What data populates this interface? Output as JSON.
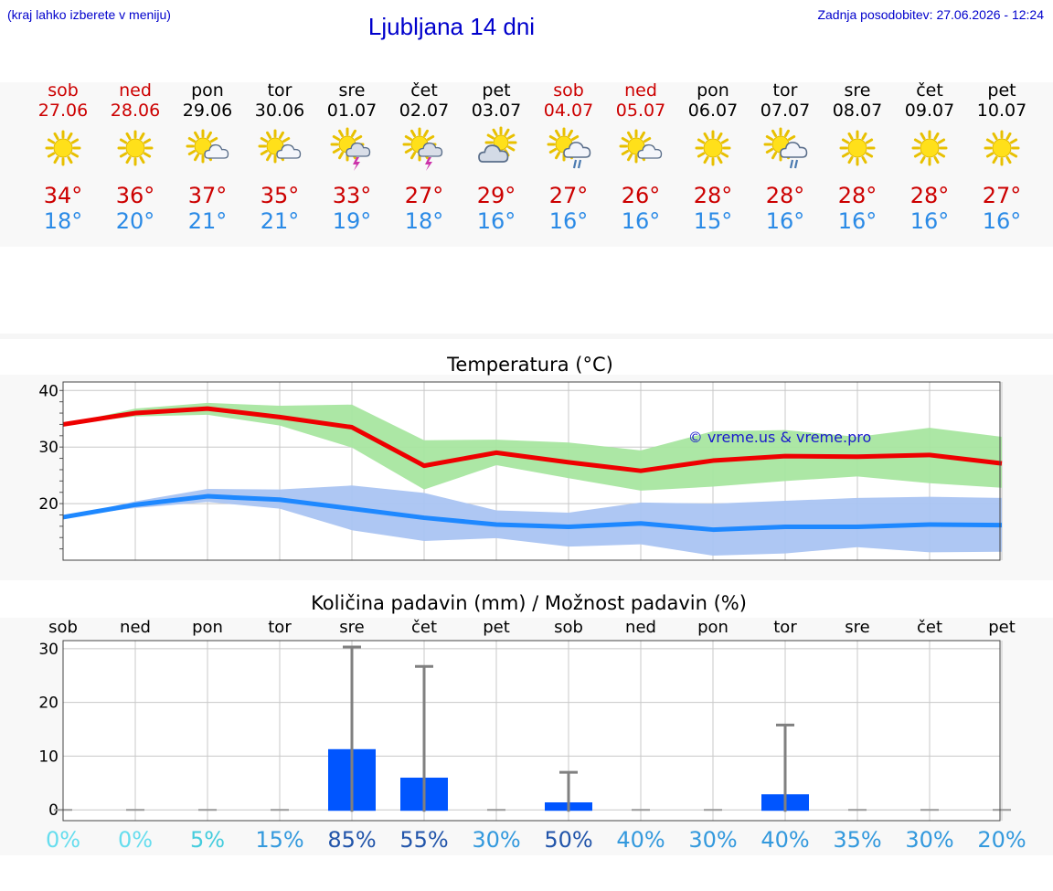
{
  "header": {
    "hint": "(kraj lahko izberete v meniju)",
    "title": "Ljubljana 14 dni",
    "updated": "Zadnja posodobitev: 27.06.2026 - 12:24"
  },
  "days": [
    {
      "name": "sob",
      "date": "27.06",
      "weekend": true,
      "icon": "sun",
      "max": "34°",
      "min": "18°"
    },
    {
      "name": "ned",
      "date": "28.06",
      "weekend": true,
      "icon": "sun",
      "max": "36°",
      "min": "20°"
    },
    {
      "name": "pon",
      "date": "29.06",
      "weekend": false,
      "icon": "sun-cloud",
      "max": "37°",
      "min": "21°"
    },
    {
      "name": "tor",
      "date": "30.06",
      "weekend": false,
      "icon": "sun-cloud",
      "max": "35°",
      "min": "21°"
    },
    {
      "name": "sre",
      "date": "01.07",
      "weekend": false,
      "icon": "sun-thunder",
      "max": "33°",
      "min": "19°"
    },
    {
      "name": "čet",
      "date": "02.07",
      "weekend": false,
      "icon": "sun-thunder",
      "max": "27°",
      "min": "18°"
    },
    {
      "name": "pet",
      "date": "03.07",
      "weekend": false,
      "icon": "cloud-sun",
      "max": "29°",
      "min": "16°"
    },
    {
      "name": "sob",
      "date": "04.07",
      "weekend": true,
      "icon": "sun-rain",
      "max": "27°",
      "min": "16°"
    },
    {
      "name": "ned",
      "date": "05.07",
      "weekend": true,
      "icon": "sun-cloud",
      "max": "26°",
      "min": "16°"
    },
    {
      "name": "pon",
      "date": "06.07",
      "weekend": false,
      "icon": "sun",
      "max": "28°",
      "min": "15°"
    },
    {
      "name": "tor",
      "date": "07.07",
      "weekend": false,
      "icon": "sun-rain",
      "max": "28°",
      "min": "16°"
    },
    {
      "name": "sre",
      "date": "08.07",
      "weekend": false,
      "icon": "sun",
      "max": "28°",
      "min": "16°"
    },
    {
      "name": "čet",
      "date": "09.07",
      "weekend": false,
      "icon": "sun",
      "max": "28°",
      "min": "16°"
    },
    {
      "name": "pet",
      "date": "10.07",
      "weekend": false,
      "icon": "sun",
      "max": "27°",
      "min": "16°"
    }
  ],
  "colors": {
    "max_line": "#ee0000",
    "min_line": "#1e88ff",
    "max_band": "#a8e6a0",
    "min_band": "#aac4f2",
    "bar": "#0055ff",
    "whisker": "#808080"
  },
  "chart_data": [
    {
      "type": "line",
      "title": "Temperatura (°C)",
      "watermark": "© vreme.us & vreme.pro",
      "ylim": [
        10,
        41.5
      ],
      "yticks": [
        20,
        30,
        40
      ],
      "grid": true,
      "x": [
        "27.06",
        "28.06",
        "29.06",
        "30.06",
        "01.07",
        "02.07",
        "03.07",
        "04.07",
        "05.07",
        "06.07",
        "07.07",
        "08.07",
        "09.07",
        "10.07"
      ],
      "series": [
        {
          "values": [
            34,
            36,
            36.8,
            35.3,
            33.5,
            26.7,
            29,
            27.3,
            25.8,
            27.6,
            28.4,
            28.3,
            28.6,
            27.1
          ],
          "band_low": [
            34,
            35.4,
            35.7,
            33.8,
            29.9,
            22.5,
            26.8,
            24.5,
            22.3,
            23,
            24,
            24.8,
            23.6,
            22.8
          ],
          "band_high": [
            34,
            36.8,
            37.8,
            37.3,
            37.5,
            31.2,
            31.3,
            30.8,
            29.4,
            32.8,
            33,
            31.8,
            33.4,
            31.8
          ]
        },
        {
          "values": [
            17.6,
            19.8,
            21.3,
            20.7,
            19.1,
            17.5,
            16.3,
            15.9,
            16.5,
            15.4,
            15.9,
            15.9,
            16.3,
            16.2
          ],
          "band_low": [
            17.6,
            19.2,
            20.3,
            19.1,
            15.3,
            13.4,
            13.9,
            12.4,
            12.8,
            10.8,
            11.2,
            12.3,
            11.4,
            11.5
          ],
          "band_high": [
            17.6,
            20.4,
            22.6,
            22.5,
            23.2,
            21.9,
            18.8,
            18.4,
            20.2,
            20,
            20.5,
            21,
            21.2,
            21
          ]
        }
      ]
    },
    {
      "type": "bar",
      "title": "Količina padavin (mm) / Možnost padavin (%)",
      "categories": [
        "sob",
        "ned",
        "pon",
        "tor",
        "sre",
        "čet",
        "pet",
        "sob",
        "ned",
        "pon",
        "tor",
        "sre",
        "čet",
        "pet"
      ],
      "values": [
        0,
        0,
        0,
        0,
        11.3,
        6,
        0,
        1.4,
        0,
        0,
        2.9,
        0,
        0,
        0
      ],
      "whisker_max": [
        0,
        0,
        0,
        0,
        30.3,
        26.7,
        0,
        7,
        0,
        0,
        15.8,
        0,
        0,
        0
      ],
      "chances": [
        "0%",
        "0%",
        "5%",
        "15%",
        "85%",
        "55%",
        "30%",
        "50%",
        "40%",
        "30%",
        "40%",
        "35%",
        "30%",
        "20%"
      ],
      "chance_colors": [
        "#66ddee",
        "#66ddee",
        "#44ccdd",
        "#3399dd",
        "#2255aa",
        "#2255aa",
        "#3399dd",
        "#2255aa",
        "#3399dd",
        "#3399dd",
        "#3399dd",
        "#3399dd",
        "#3399dd",
        "#3399dd"
      ],
      "ylim": [
        -2,
        31.5
      ],
      "yticks": [
        0,
        10,
        20,
        30
      ],
      "grid": true
    }
  ]
}
